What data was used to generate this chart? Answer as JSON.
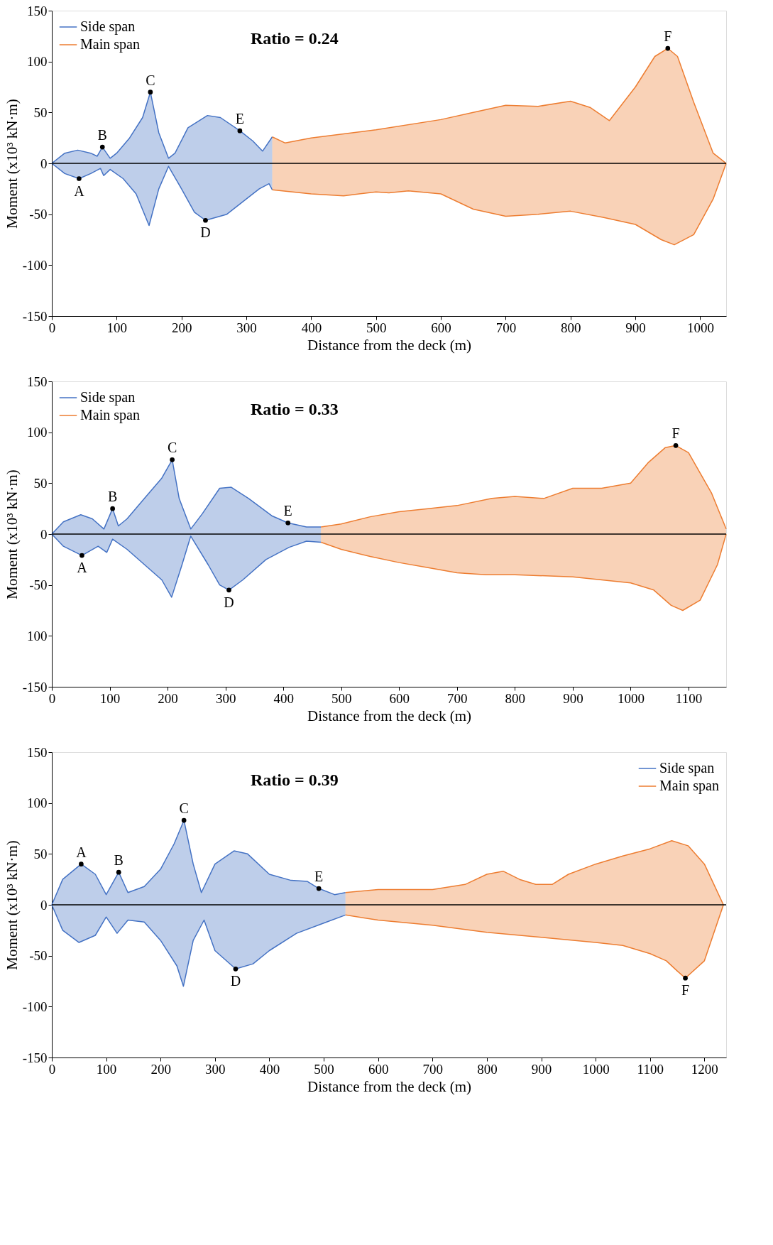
{
  "chart_data": [
    {
      "type": "area",
      "xlabel": "Distance from the deck (m)",
      "ylabel": "Moment (x10³ kN·m)",
      "xlim": [
        0,
        1040
      ],
      "ylim": [
        -150,
        150
      ],
      "xticks": [
        0,
        100,
        200,
        300,
        400,
        500,
        600,
        700,
        800,
        900,
        1000
      ],
      "yticks": [
        -150,
        -100,
        -50,
        0,
        50,
        100,
        150
      ],
      "grid": false,
      "legend": "top left",
      "ref_lines": [
        {
          "axis": "y",
          "value": 0,
          "color": "#000000"
        }
      ],
      "series": [
        {
          "name": "Side span",
          "color": "#4472c4",
          "x": [
            0,
            20,
            40,
            60,
            70,
            78,
            90,
            100,
            120,
            140,
            152,
            165,
            180,
            190,
            210,
            240,
            260,
            290,
            310,
            325,
            340
          ],
          "values": [
            0,
            10,
            13,
            10,
            7,
            16,
            5,
            10,
            25,
            45,
            70,
            30,
            5,
            10,
            35,
            47,
            45,
            32,
            22,
            12,
            26
          ]
        },
        {
          "color": "#4472c4",
          "x": [
            0,
            20,
            42,
            60,
            75,
            80,
            90,
            110,
            130,
            150,
            165,
            180,
            200,
            220,
            237,
            270,
            300,
            320,
            335,
            340
          ],
          "values": [
            0,
            -10,
            -15,
            -10,
            -5,
            -12,
            -6,
            -15,
            -30,
            -61,
            -25,
            -3,
            -25,
            -48,
            -56,
            -50,
            -35,
            -25,
            -20,
            -26
          ]
        },
        {
          "name": "Main span",
          "color": "#ed7d31",
          "x": [
            340,
            360,
            400,
            500,
            600,
            650,
            700,
            750,
            800,
            830,
            860,
            900,
            930,
            950,
            965,
            990,
            1020,
            1040
          ],
          "values": [
            26,
            20,
            25,
            33,
            43,
            50,
            57,
            56,
            61,
            55,
            42,
            75,
            105,
            113,
            105,
            60,
            10,
            0
          ]
        },
        {
          "color": "#ed7d31",
          "x": [
            340,
            400,
            450,
            500,
            520,
            550,
            600,
            650,
            700,
            750,
            800,
            850,
            900,
            940,
            960,
            990,
            1020,
            1040
          ],
          "values": [
            -26,
            -30,
            -32,
            -28,
            -29,
            -27,
            -30,
            -45,
            -52,
            -50,
            -47,
            -53,
            -60,
            -75,
            -80,
            -70,
            -35,
            0
          ]
        }
      ],
      "annotations": [
        "Ratio = 0.24",
        {
          "text": "A",
          "x": 42,
          "y": -15
        },
        {
          "text": "B",
          "x": 78,
          "y": 16
        },
        {
          "text": "C",
          "x": 152,
          "y": 70
        },
        {
          "text": "D",
          "x": 237,
          "y": -56
        },
        {
          "text": "E",
          "x": 290,
          "y": 32
        },
        {
          "text": "F",
          "x": 950,
          "y": 113
        }
      ]
    },
    {
      "type": "area",
      "xlabel": "Distance from the deck (m)",
      "ylabel": "Moment (x10³ kN·m)",
      "xlim": [
        0,
        1165
      ],
      "ylim": [
        -150,
        150
      ],
      "xticks": [
        0,
        100,
        200,
        300,
        400,
        500,
        600,
        700,
        800,
        900,
        1000,
        1100
      ],
      "yticks": [
        -150,
        {
          "value": -100,
          "label": "100"
        },
        -50,
        0,
        50,
        100,
        150
      ],
      "grid": false,
      "legend": "top left",
      "ref_lines": [
        {
          "axis": "y",
          "value": 0,
          "color": "#000000"
        }
      ],
      "series": [
        {
          "name": "Side span",
          "color": "#4472c4",
          "x": [
            0,
            20,
            50,
            70,
            90,
            105,
            115,
            130,
            160,
            190,
            208,
            220,
            240,
            260,
            290,
            310,
            340,
            380,
            408,
            440,
            465
          ],
          "values": [
            0,
            12,
            19,
            15,
            5,
            25,
            8,
            15,
            35,
            55,
            73,
            35,
            5,
            20,
            45,
            46,
            35,
            18,
            11,
            7,
            7
          ]
        },
        {
          "color": "#4472c4",
          "x": [
            0,
            20,
            52,
            80,
            95,
            105,
            130,
            160,
            190,
            207,
            225,
            240,
            270,
            290,
            306,
            330,
            370,
            410,
            440,
            465
          ],
          "values": [
            0,
            -12,
            -21,
            -12,
            -18,
            -5,
            -15,
            -30,
            -45,
            -62,
            -30,
            -2,
            -30,
            -50,
            -55,
            -45,
            -25,
            -13,
            -7,
            -8
          ]
        },
        {
          "name": "Main span",
          "color": "#ed7d31",
          "x": [
            465,
            500,
            550,
            600,
            650,
            700,
            760,
            800,
            850,
            900,
            950,
            1000,
            1030,
            1060,
            1078,
            1100,
            1140,
            1165
          ],
          "values": [
            7,
            10,
            17,
            22,
            25,
            28,
            35,
            37,
            35,
            45,
            45,
            50,
            70,
            85,
            87,
            80,
            40,
            5
          ]
        },
        {
          "color": "#ed7d31",
          "x": [
            465,
            500,
            550,
            600,
            650,
            700,
            750,
            800,
            900,
            1000,
            1040,
            1070,
            1090,
            1120,
            1150,
            1165
          ],
          "values": [
            -8,
            -15,
            -22,
            -28,
            -33,
            -38,
            -40,
            -40,
            -42,
            -48,
            -55,
            -70,
            -75,
            -65,
            -30,
            0
          ]
        }
      ],
      "annotations": [
        "Ratio = 0.33",
        {
          "text": "A",
          "x": 52,
          "y": -21
        },
        {
          "text": "B",
          "x": 105,
          "y": 25
        },
        {
          "text": "C",
          "x": 208,
          "y": 73
        },
        {
          "text": "D",
          "x": 306,
          "y": -55
        },
        {
          "text": "E",
          "x": 408,
          "y": 11
        },
        {
          "text": "F",
          "x": 1078,
          "y": 87
        }
      ]
    },
    {
      "type": "area",
      "xlabel": "Distance from the deck (m)",
      "ylabel": "Moment (x10³ kN·m)",
      "xlim": [
        0,
        1240
      ],
      "ylim": [
        -150,
        150
      ],
      "xticks": [
        0,
        100,
        200,
        300,
        400,
        500,
        600,
        700,
        800,
        900,
        1000,
        1100,
        1200
      ],
      "yticks": [
        -150,
        -100,
        -50,
        0,
        50,
        100,
        150
      ],
      "grid": false,
      "legend": "top right",
      "ref_lines": [
        {
          "axis": "y",
          "value": 0,
          "color": "#000000"
        }
      ],
      "series": [
        {
          "name": "Side span",
          "color": "#4472c4",
          "x": [
            0,
            20,
            54,
            80,
            100,
            123,
            140,
            170,
            200,
            225,
            243,
            260,
            275,
            300,
            335,
            360,
            400,
            440,
            470,
            491,
            520,
            540
          ],
          "values": [
            0,
            25,
            40,
            30,
            10,
            32,
            12,
            18,
            35,
            60,
            83,
            40,
            12,
            40,
            53,
            50,
            30,
            24,
            23,
            16,
            10,
            12
          ]
        },
        {
          "color": "#4472c4",
          "x": [
            0,
            20,
            50,
            80,
            100,
            120,
            140,
            170,
            200,
            230,
            242,
            260,
            280,
            300,
            338,
            370,
            400,
            450,
            500,
            540
          ],
          "values": [
            0,
            -25,
            -37,
            -30,
            -12,
            -28,
            -15,
            -17,
            -35,
            -60,
            -80,
            -35,
            -15,
            -45,
            -63,
            -58,
            -45,
            -28,
            -18,
            -10
          ]
        },
        {
          "name": "Main span",
          "color": "#ed7d31",
          "x": [
            540,
            600,
            700,
            760,
            800,
            830,
            860,
            890,
            920,
            950,
            1000,
            1050,
            1100,
            1140,
            1170,
            1200,
            1235
          ],
          "values": [
            12,
            15,
            15,
            20,
            30,
            33,
            25,
            20,
            20,
            30,
            40,
            48,
            55,
            63,
            58,
            40,
            0
          ]
        },
        {
          "color": "#ed7d31",
          "x": [
            540,
            600,
            700,
            800,
            900,
            1000,
            1050,
            1100,
            1130,
            1150,
            1165,
            1200,
            1235
          ],
          "values": [
            -10,
            -15,
            -20,
            -27,
            -32,
            -37,
            -40,
            -48,
            -55,
            -65,
            -72,
            -55,
            0
          ]
        }
      ],
      "annotations": [
        "Ratio = 0.39",
        {
          "text": "A",
          "x": 54,
          "y": 40
        },
        {
          "text": "B",
          "x": 123,
          "y": 32
        },
        {
          "text": "C",
          "x": 243,
          "y": 83
        },
        {
          "text": "D",
          "x": 338,
          "y": -63
        },
        {
          "text": "E",
          "x": 491,
          "y": 16
        },
        {
          "text": "F",
          "x": 1165,
          "y": -72
        }
      ]
    }
  ]
}
